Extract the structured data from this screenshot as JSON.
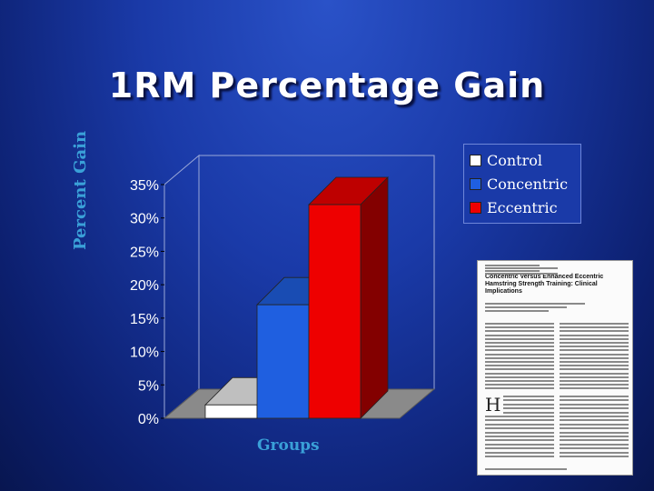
{
  "slide": {
    "title": "1RM Percentage Gain"
  },
  "chart_data": {
    "type": "bar",
    "categories": [
      "Groups"
    ],
    "series": [
      {
        "name": "Control",
        "values": [
          2
        ],
        "color": "#ffffff"
      },
      {
        "name": "Concentric",
        "values": [
          17
        ],
        "color": "#1f5fe0"
      },
      {
        "name": "Eccentric",
        "values": [
          32
        ],
        "color": "#ee0000"
      }
    ],
    "xlabel": "Groups",
    "ylabel": "Percent Gain",
    "ylim": [
      0,
      35
    ],
    "yticks": [
      "0%",
      "5%",
      "10%",
      "15%",
      "20%",
      "25%",
      "30%",
      "35%"
    ],
    "grid": false,
    "legend": "top-right",
    "style": "3d"
  },
  "paper": {
    "title": "Concentric Versus Enhanced Eccentric Hamstring Strength Training: Clinical Implications"
  }
}
